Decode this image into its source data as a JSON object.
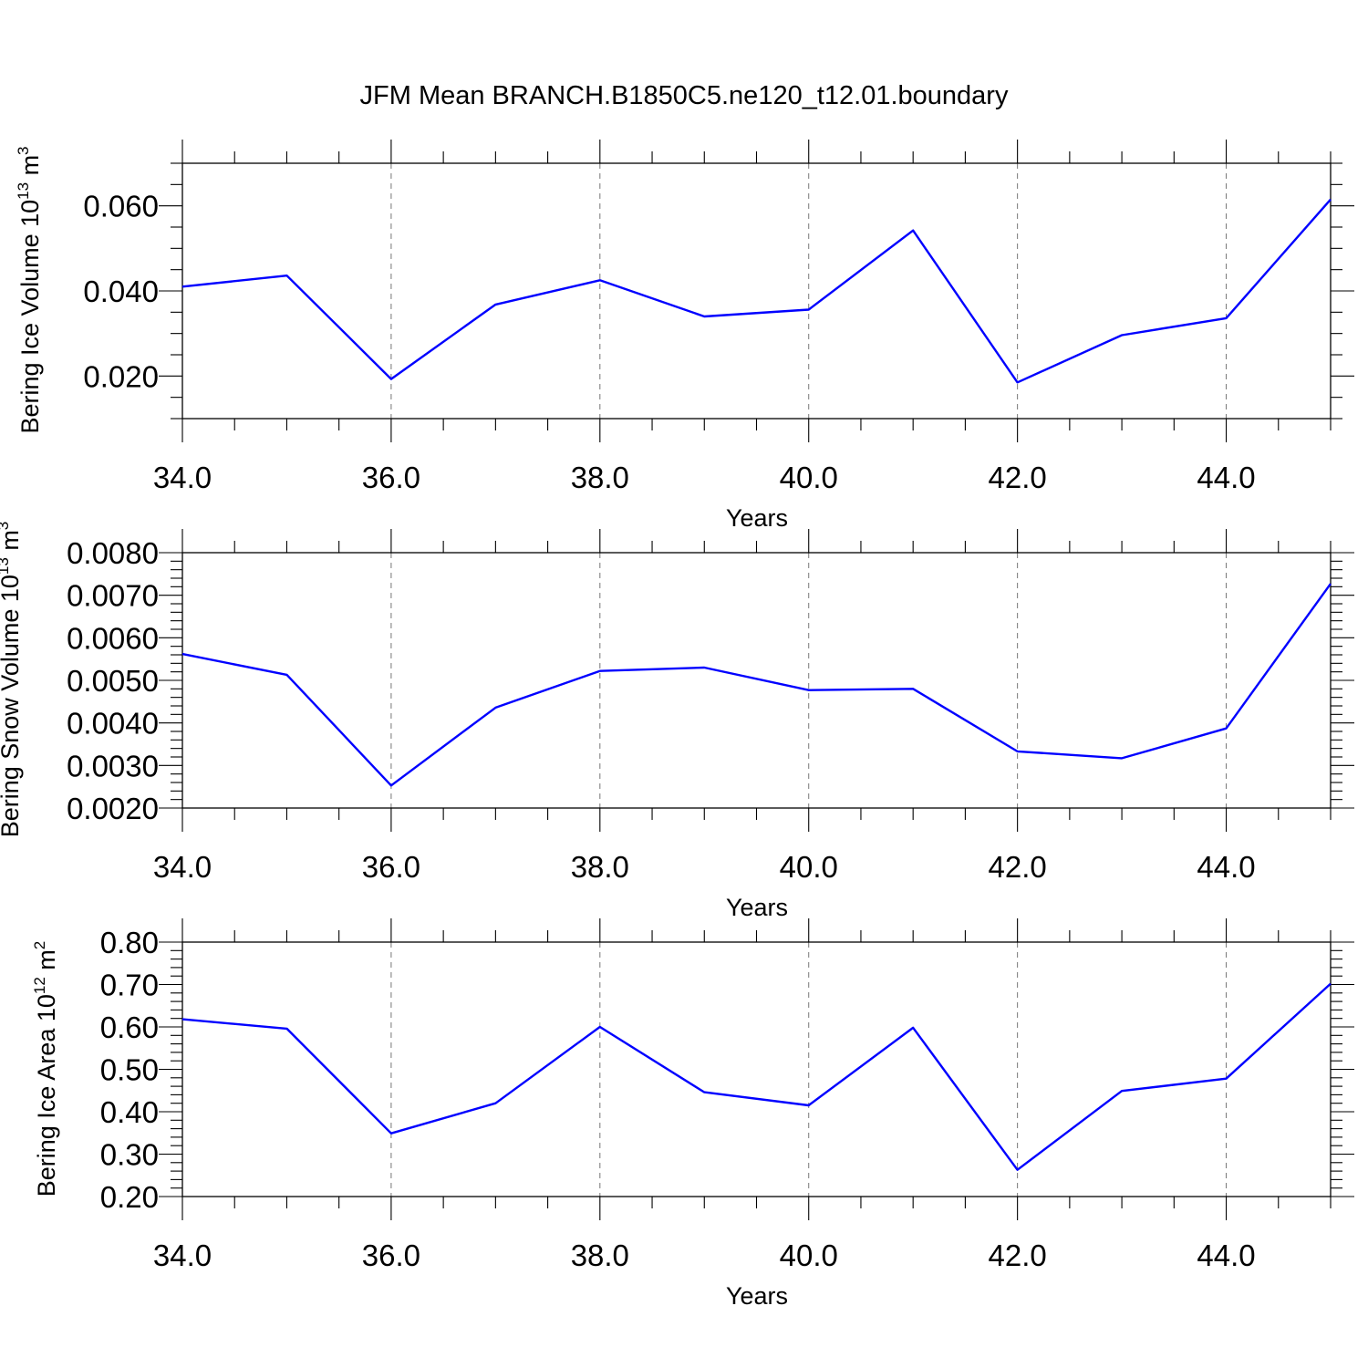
{
  "title": "JFM Mean BRANCH.B1850C5.ne120_t12.01.boundary",
  "line_color": "#0000ff",
  "chart_data": [
    {
      "type": "line",
      "xlabel": "Years",
      "ylabel": "Bering Ice Volume 10",
      "ylabel_exp": "13",
      "ylabel_unit": "m",
      "ylabel_unit_exp": "3",
      "xlim": [
        34,
        45
      ],
      "ylim": [
        0.01,
        0.07
      ],
      "xticks": [
        34,
        36,
        38,
        40,
        42,
        44
      ],
      "xtick_labels": [
        "34.0",
        "36.0",
        "38.0",
        "40.0",
        "42.0",
        "44.0"
      ],
      "yticks": [
        0.02,
        0.04,
        0.06
      ],
      "ytick_labels": [
        "0.020",
        "0.040",
        "0.060"
      ],
      "y_minor_step": 0.005,
      "grid": "vertical-dashed",
      "x": [
        34,
        35,
        36,
        37,
        38,
        39,
        40,
        41,
        42,
        43,
        44,
        45
      ],
      "values": [
        0.041,
        0.0436,
        0.0193,
        0.0368,
        0.0425,
        0.034,
        0.0356,
        0.0542,
        0.0185,
        0.0296,
        0.0336,
        0.0615
      ]
    },
    {
      "type": "line",
      "xlabel": "Years",
      "ylabel": "Bering Snow Volume 10",
      "ylabel_exp": "13",
      "ylabel_unit": "m",
      "ylabel_unit_exp": "3",
      "xlim": [
        34,
        45
      ],
      "ylim": [
        0.002,
        0.008
      ],
      "xticks": [
        34,
        36,
        38,
        40,
        42,
        44
      ],
      "xtick_labels": [
        "34.0",
        "36.0",
        "38.0",
        "40.0",
        "42.0",
        "44.0"
      ],
      "yticks": [
        0.002,
        0.003,
        0.004,
        0.005,
        0.006,
        0.007,
        0.008
      ],
      "ytick_labels": [
        "0.0020",
        "0.0030",
        "0.0040",
        "0.0050",
        "0.0060",
        "0.0070",
        "0.0080"
      ],
      "y_minor_step": 0.0002,
      "grid": "vertical-dashed",
      "x": [
        34,
        35,
        36,
        37,
        38,
        39,
        40,
        41,
        42,
        43,
        44,
        45
      ],
      "values": [
        0.00562,
        0.00513,
        0.00253,
        0.00436,
        0.00522,
        0.0053,
        0.00477,
        0.0048,
        0.00333,
        0.00317,
        0.00387,
        0.00727
      ]
    },
    {
      "type": "line",
      "xlabel": "Years",
      "ylabel": "Bering Ice Area 10",
      "ylabel_exp": "12",
      "ylabel_unit": "m",
      "ylabel_unit_exp": "2",
      "xlim": [
        34,
        45
      ],
      "ylim": [
        0.2,
        0.8
      ],
      "xticks": [
        34,
        36,
        38,
        40,
        42,
        44
      ],
      "xtick_labels": [
        "34.0",
        "36.0",
        "38.0",
        "40.0",
        "42.0",
        "44.0"
      ],
      "yticks": [
        0.2,
        0.3,
        0.4,
        0.5,
        0.6,
        0.7,
        0.8
      ],
      "ytick_labels": [
        "0.20",
        "0.30",
        "0.40",
        "0.50",
        "0.60",
        "0.70",
        "0.80"
      ],
      "y_minor_step": 0.02,
      "grid": "vertical-dashed",
      "x": [
        34,
        35,
        36,
        37,
        38,
        39,
        40,
        41,
        42,
        43,
        44,
        45
      ],
      "values": [
        0.618,
        0.596,
        0.349,
        0.42,
        0.6,
        0.446,
        0.415,
        0.598,
        0.263,
        0.449,
        0.478,
        0.702
      ]
    }
  ]
}
